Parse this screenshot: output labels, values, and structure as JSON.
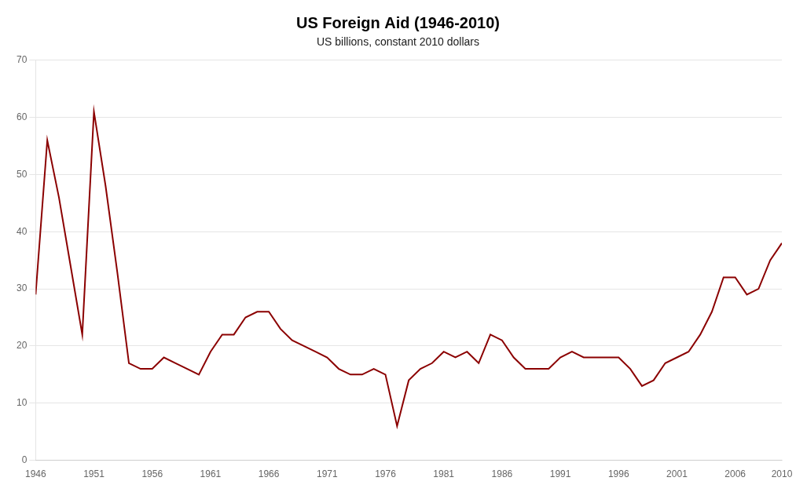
{
  "chart_data": {
    "type": "line",
    "title": "US Foreign Aid (1946-2010)",
    "subtitle": "US billions, constant 2010 dollars",
    "x": [
      1946,
      1947,
      1948,
      1949,
      1950,
      1951,
      1952,
      1953,
      1954,
      1955,
      1956,
      1957,
      1958,
      1959,
      1960,
      1961,
      1962,
      1963,
      1964,
      1965,
      1966,
      1967,
      1968,
      1969,
      1970,
      1971,
      1972,
      1973,
      1974,
      1975,
      1976,
      1977,
      1978,
      1979,
      1980,
      1981,
      1982,
      1983,
      1984,
      1985,
      1986,
      1987,
      1988,
      1989,
      1990,
      1991,
      1992,
      1993,
      1994,
      1995,
      1996,
      1997,
      1998,
      1999,
      2000,
      2001,
      2002,
      2003,
      2004,
      2005,
      2006,
      2007,
      2008,
      2009,
      2010
    ],
    "values": [
      29,
      56,
      46,
      34,
      22,
      61,
      48,
      33,
      17,
      16,
      16,
      18,
      17,
      16,
      15,
      19,
      22,
      22,
      25,
      26,
      26,
      23,
      21,
      20,
      19,
      18,
      16,
      15,
      15,
      16,
      15,
      6,
      14,
      16,
      17,
      19,
      18,
      19,
      17,
      22,
      21,
      18,
      16,
      16,
      16,
      18,
      19,
      18,
      18,
      18,
      18,
      16,
      13,
      14,
      17,
      18,
      19,
      22,
      26,
      32,
      32,
      29,
      30,
      35,
      38
    ],
    "color": "#8B0000",
    "xlim": [
      1946,
      2010
    ],
    "ylim": [
      0,
      70
    ],
    "xticks": [
      1946,
      1951,
      1956,
      1961,
      1966,
      1971,
      1976,
      1981,
      1986,
      1991,
      1996,
      2001,
      2006,
      2010
    ],
    "yticks": [
      0,
      10,
      20,
      30,
      40,
      50,
      60,
      70
    ],
    "grid": true
  }
}
